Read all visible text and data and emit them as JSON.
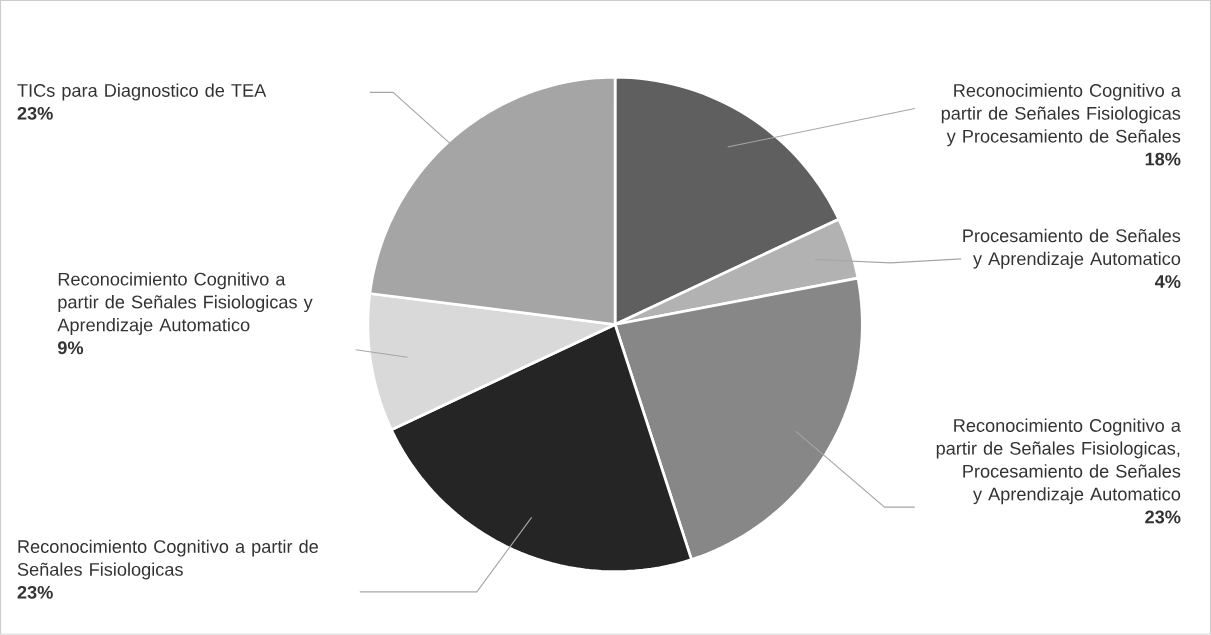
{
  "chart_data": {
    "type": "pie",
    "categories": [
      "Reconocimiento Cognitivo a partir de Señales Fisiologicas y Procesamiento de Señales",
      "Procesamiento de Señales y Aprendizaje Automatico",
      "Reconocimiento Cognitivo a partir de Señales Fisiologicas, Procesamiento de Señales y Aprendizaje Automatico",
      "Reconocimiento Cognitivo a partir de Señales Fisiologicas",
      "Reconocimiento Cognitivo a partir de Señales Fisiologicas y Aprendizaje Automatico",
      "TICs para Diagnostico de TEA"
    ],
    "values": [
      18,
      4,
      23,
      23,
      9,
      23
    ],
    "value_labels": [
      "18%",
      "4%",
      "23%",
      "23%",
      "9%",
      "23%"
    ],
    "colors": [
      "#5f5f5f",
      "#b2b2b2",
      "#878787",
      "#252525",
      "#d9d9d9",
      "#a5a5a5"
    ]
  }
}
